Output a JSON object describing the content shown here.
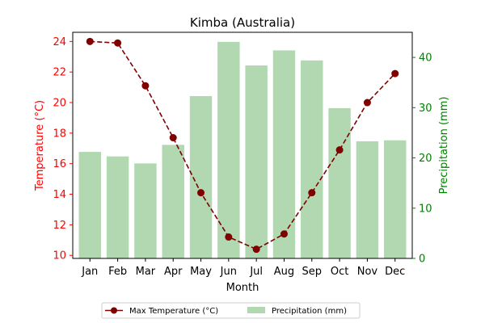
{
  "chart_data": {
    "type": "bar+line",
    "title": "Kimba (Australia)",
    "xlabel": "Month",
    "categories": [
      "Jan",
      "Feb",
      "Mar",
      "Apr",
      "May",
      "Jun",
      "Jul",
      "Aug",
      "Sep",
      "Oct",
      "Nov",
      "Dec"
    ],
    "left_axis": {
      "label": "Temperature (°C)",
      "ylim": [
        9.8,
        24.6
      ],
      "ticks": [
        10,
        12,
        14,
        16,
        18,
        20,
        22,
        24
      ],
      "color": "#ff0000"
    },
    "right_axis": {
      "label": "Precipitation (mm)",
      "ylim": [
        0,
        45
      ],
      "ticks": [
        0,
        10,
        20,
        30,
        40
      ],
      "color": "#008000"
    },
    "series": [
      {
        "name": "Max Temperature (°C)",
        "type": "line",
        "axis": "left",
        "color": "#800000",
        "line_style": "dashed",
        "marker": "circle",
        "values": [
          24.0,
          23.9,
          21.1,
          17.7,
          14.1,
          11.2,
          10.4,
          11.4,
          14.1,
          16.9,
          20.0,
          21.9
        ]
      },
      {
        "name": "Precipitation (mm)",
        "type": "bar",
        "axis": "right",
        "color": "#b1d8b1",
        "values": [
          21.2,
          20.3,
          18.9,
          22.6,
          32.3,
          43.1,
          38.4,
          41.4,
          39.4,
          29.9,
          23.3,
          23.5
        ]
      }
    ],
    "legend": {
      "placement": "bottom-center"
    },
    "grid": false
  }
}
